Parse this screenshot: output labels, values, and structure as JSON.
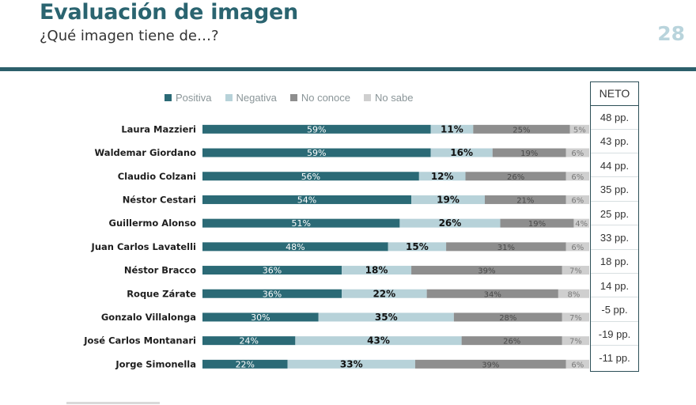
{
  "header": {
    "title": "Evaluación de imagen",
    "subtitle": "¿Qué imagen tiene de…?",
    "page_number": "28"
  },
  "colors": {
    "positiva": "#2b6a76",
    "negativa": "#b7d2d9",
    "no_conoce": "#8e8e8e",
    "no_sabe": "#cfcfcf",
    "header_rule": "#2c5f6b"
  },
  "legend": [
    {
      "label": "Positiva",
      "color": "#2b6a76"
    },
    {
      "label": "Negativa",
      "color": "#b7d2d9"
    },
    {
      "label": "No conoce",
      "color": "#8e8e8e"
    },
    {
      "label": "No sabe",
      "color": "#cfcfcf"
    }
  ],
  "neto_header": "NETO",
  "chart_data": {
    "type": "bar",
    "orientation": "horizontal",
    "stacked": true,
    "categories": [
      "Laura Mazzieri",
      "Waldemar Giordano",
      "Claudio Colzani",
      "Néstor Cestari",
      "Guillermo Alonso",
      "Juan Carlos Lavatelli",
      "Néstor Bracco",
      "Roque Zárate",
      "Gonzalo Villalonga",
      "José Carlos Montanari",
      "Jorge Simonella"
    ],
    "series": [
      {
        "name": "Positiva",
        "values": [
          59,
          59,
          56,
          54,
          51,
          48,
          36,
          36,
          30,
          24,
          22
        ]
      },
      {
        "name": "Negativa",
        "values": [
          11,
          16,
          12,
          19,
          26,
          15,
          18,
          22,
          35,
          43,
          33
        ]
      },
      {
        "name": "No conoce",
        "values": [
          25,
          19,
          26,
          21,
          19,
          31,
          39,
          34,
          28,
          26,
          39
        ]
      },
      {
        "name": "No sabe",
        "values": [
          5,
          6,
          6,
          6,
          4,
          6,
          7,
          8,
          7,
          7,
          6
        ]
      }
    ],
    "value_labels": [
      [
        "59%",
        "11%",
        "25%",
        "5%"
      ],
      [
        "59%",
        "16%",
        "19%",
        "6%"
      ],
      [
        "56%",
        "12%",
        "26%",
        "6%"
      ],
      [
        "54%",
        "19%",
        "21%",
        "6%"
      ],
      [
        "51%",
        "26%",
        "19%",
        "4%"
      ],
      [
        "48%",
        "15%",
        "31%",
        "6%"
      ],
      [
        "36%",
        "18%",
        "39%",
        "7%"
      ],
      [
        "36%",
        "22%",
        "34%",
        "8%"
      ],
      [
        "30%",
        "35%",
        "28%",
        "7%"
      ],
      [
        "24%",
        "43%",
        "26%",
        "7%"
      ],
      [
        "22%",
        "33%",
        "39%",
        "6%"
      ]
    ],
    "neto": [
      "48 pp.",
      "43 pp.",
      "44 pp.",
      "35 pp.",
      "25 pp.",
      "33 pp.",
      "18 pp.",
      "14 pp.",
      "-5 pp.",
      "-19 pp.",
      "-11 pp."
    ],
    "xlim": [
      0,
      100
    ],
    "legend_position": "top"
  }
}
